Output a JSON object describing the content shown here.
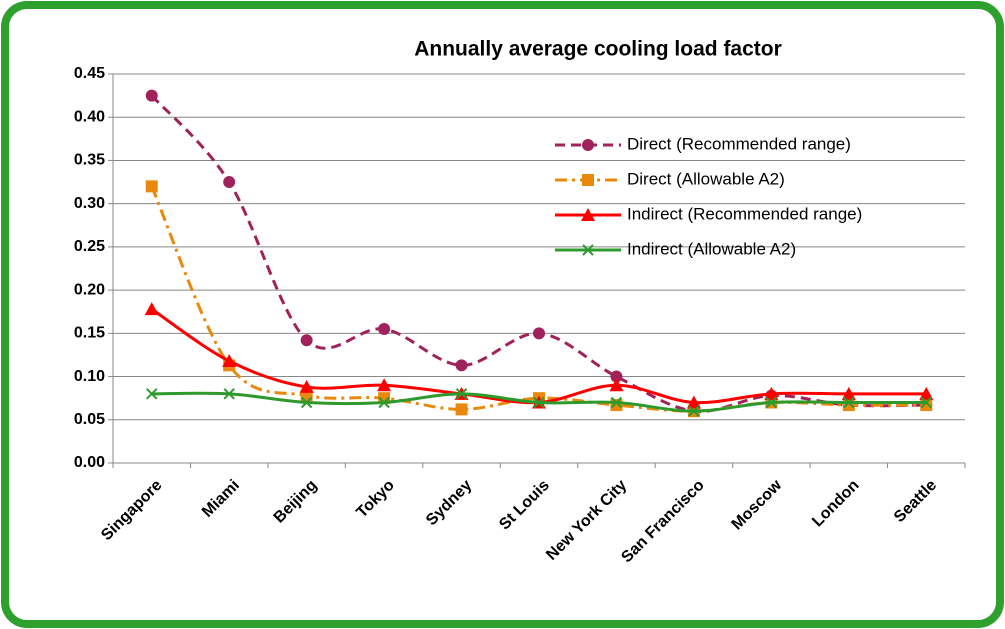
{
  "chart_data": {
    "type": "line",
    "title": "Annually average cooling load factor",
    "categories": [
      "Singapore",
      "Miami",
      "Beijing",
      "Tokyo",
      "Sydney",
      "St Louis",
      "New York City",
      "San Francisco",
      "Moscow",
      "London",
      "Seattle"
    ],
    "series": [
      {
        "name": "Direct (Recommended range)",
        "color": "#a0225a",
        "dash": "dashed",
        "marker": "circle",
        "values": [
          0.425,
          0.325,
          0.142,
          0.155,
          0.113,
          0.15,
          0.1,
          0.06,
          0.078,
          0.067,
          0.067
        ]
      },
      {
        "name": "Direct (Allowable A2)",
        "color": "#e8890c",
        "dash": "dashdot",
        "marker": "square",
        "values": [
          0.32,
          0.113,
          0.078,
          0.075,
          0.062,
          0.075,
          0.067,
          0.06,
          0.07,
          0.067,
          0.067
        ]
      },
      {
        "name": "Indirect (Recommended range)",
        "color": "#ff0000",
        "dash": "solid",
        "marker": "triangle",
        "values": [
          0.178,
          0.118,
          0.088,
          0.09,
          0.08,
          0.07,
          0.09,
          0.07,
          0.08,
          0.08,
          0.08
        ]
      },
      {
        "name": "Indirect (Allowable A2)",
        "color": "#2e9a2e",
        "dash": "solid",
        "marker": "x",
        "values": [
          0.08,
          0.08,
          0.07,
          0.07,
          0.08,
          0.07,
          0.07,
          0.06,
          0.07,
          0.07,
          0.07
        ]
      }
    ],
    "ylim": [
      0,
      0.45
    ],
    "yticks": [
      {
        "value": 0,
        "label": "0.00"
      },
      {
        "value": 0.05,
        "label": "0.05"
      },
      {
        "value": 0.1,
        "label": "0.10"
      },
      {
        "value": 0.15,
        "label": "0.15"
      },
      {
        "value": 0.2,
        "label": "0.20"
      },
      {
        "value": 0.25,
        "label": "0.25"
      },
      {
        "value": 0.3,
        "label": "0.30"
      },
      {
        "value": 0.35,
        "label": "0.35"
      },
      {
        "value": 0.4,
        "label": "0.40"
      },
      {
        "value": 0.45,
        "label": "0.45"
      }
    ],
    "grid": true,
    "smooth": true,
    "legend": "upper right"
  }
}
